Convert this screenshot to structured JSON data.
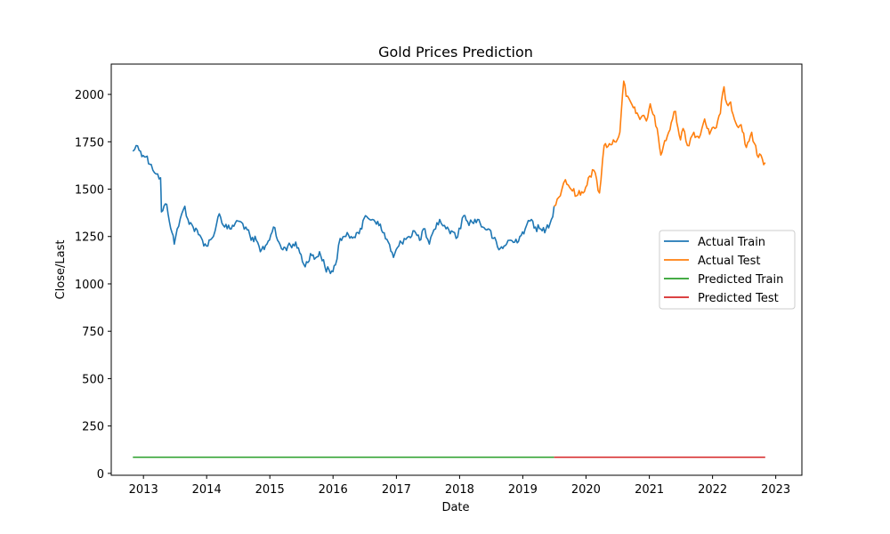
{
  "chart_data": {
    "type": "line",
    "title": "Gold Prices Prediction",
    "xlabel": "Date",
    "ylabel": "Close/Last",
    "xlim": [
      "2012-06-29",
      "2023-06-01"
    ],
    "ylim": [
      -10,
      2160
    ],
    "x_ticks": [
      "2013",
      "2014",
      "2015",
      "2016",
      "2017",
      "2018",
      "2019",
      "2020",
      "2021",
      "2022",
      "2023"
    ],
    "y_ticks": [
      0,
      250,
      500,
      750,
      1000,
      1250,
      1500,
      1750,
      2000
    ],
    "grid": false,
    "legend_position": "center-right",
    "series": [
      {
        "name": "Actual Train",
        "color": "#1f77b4",
        "x": [
          "2012-11-01",
          "2012-11-20",
          "2012-12-15",
          "2013-01-15",
          "2013-02-15",
          "2013-03-15",
          "2013-04-10",
          "2013-04-15",
          "2013-05-15",
          "2013-06-15",
          "2013-06-28",
          "2013-07-15",
          "2013-08-28",
          "2013-09-15",
          "2013-10-15",
          "2013-11-15",
          "2013-12-31",
          "2014-01-31",
          "2014-02-28",
          "2014-03-15",
          "2014-04-15",
          "2014-05-15",
          "2014-06-15",
          "2014-07-10",
          "2014-08-15",
          "2014-09-15",
          "2014-10-15",
          "2014-11-07",
          "2014-12-15",
          "2015-01-22",
          "2015-02-15",
          "2015-03-17",
          "2015-04-15",
          "2015-05-15",
          "2015-06-15",
          "2015-07-24",
          "2015-08-24",
          "2015-09-15",
          "2015-10-15",
          "2015-11-15",
          "2015-12-17",
          "2016-01-15",
          "2016-02-11",
          "2016-03-15",
          "2016-04-15",
          "2016-05-15",
          "2016-06-15",
          "2016-07-06",
          "2016-08-15",
          "2016-09-15",
          "2016-10-15",
          "2016-11-15",
          "2016-12-15",
          "2017-01-15",
          "2017-02-15",
          "2017-03-15",
          "2017-04-15",
          "2017-05-15",
          "2017-06-06",
          "2017-07-10",
          "2017-08-15",
          "2017-09-08",
          "2017-10-15",
          "2017-11-15",
          "2017-12-12",
          "2018-01-25",
          "2018-02-15",
          "2018-03-15",
          "2018-04-15",
          "2018-05-15",
          "2018-06-15",
          "2018-07-15",
          "2018-08-16",
          "2018-09-15",
          "2018-10-15",
          "2018-11-15",
          "2018-12-15",
          "2019-01-15",
          "2019-02-20",
          "2019-03-15",
          "2019-04-23",
          "2019-05-15",
          "2019-06-15",
          "2019-07-01"
        ],
        "values": [
          1700,
          1730,
          1700,
          1670,
          1630,
          1580,
          1560,
          1380,
          1420,
          1270,
          1210,
          1290,
          1410,
          1340,
          1300,
          1260,
          1200,
          1240,
          1320,
          1370,
          1300,
          1290,
          1320,
          1330,
          1300,
          1230,
          1230,
          1170,
          1210,
          1300,
          1230,
          1180,
          1200,
          1210,
          1190,
          1090,
          1160,
          1130,
          1170,
          1090,
          1055,
          1100,
          1240,
          1250,
          1250,
          1270,
          1290,
          1360,
          1340,
          1330,
          1270,
          1220,
          1140,
          1200,
          1240,
          1250,
          1280,
          1230,
          1290,
          1210,
          1290,
          1340,
          1290,
          1280,
          1240,
          1360,
          1330,
          1325,
          1340,
          1300,
          1290,
          1240,
          1180,
          1200,
          1230,
          1220,
          1250,
          1290,
          1340,
          1300,
          1280,
          1290,
          1340,
          1410
        ]
      },
      {
        "name": "Actual Test",
        "color": "#ff7f0e",
        "x": [
          "2019-07-01",
          "2019-08-15",
          "2019-09-04",
          "2019-10-15",
          "2019-11-15",
          "2019-12-15",
          "2020-01-15",
          "2020-02-15",
          "2020-03-19",
          "2020-04-15",
          "2020-05-15",
          "2020-06-15",
          "2020-07-15",
          "2020-08-06",
          "2020-08-20",
          "2020-09-15",
          "2020-10-15",
          "2020-11-15",
          "2020-12-15",
          "2021-01-06",
          "2021-02-15",
          "2021-03-08",
          "2021-04-15",
          "2021-05-15",
          "2021-06-01",
          "2021-06-30",
          "2021-07-15",
          "2021-08-09",
          "2021-09-15",
          "2021-10-15",
          "2021-11-16",
          "2021-12-15",
          "2022-01-15",
          "2022-02-15",
          "2022-03-08",
          "2022-03-25",
          "2022-04-15",
          "2022-05-15",
          "2022-06-15",
          "2022-07-15",
          "2022-08-15",
          "2022-09-15",
          "2022-10-15",
          "2022-11-01"
        ],
        "values": [
          1410,
          1500,
          1550,
          1490,
          1470,
          1480,
          1560,
          1600,
          1480,
          1730,
          1740,
          1750,
          1800,
          2070,
          1990,
          1960,
          1900,
          1880,
          1860,
          1950,
          1820,
          1680,
          1780,
          1870,
          1910,
          1760,
          1820,
          1730,
          1800,
          1770,
          1870,
          1790,
          1820,
          1900,
          2040,
          1950,
          1960,
          1850,
          1840,
          1720,
          1800,
          1680,
          1660,
          1640
        ]
      },
      {
        "name": "Predicted Train",
        "color": "#2ca02c",
        "x": [
          "2012-11-01",
          "2019-07-01"
        ],
        "values": [
          85,
          85
        ]
      },
      {
        "name": "Predicted Test",
        "color": "#d62728",
        "x": [
          "2019-07-01",
          "2022-11-01"
        ],
        "values": [
          85,
          85
        ]
      }
    ]
  }
}
